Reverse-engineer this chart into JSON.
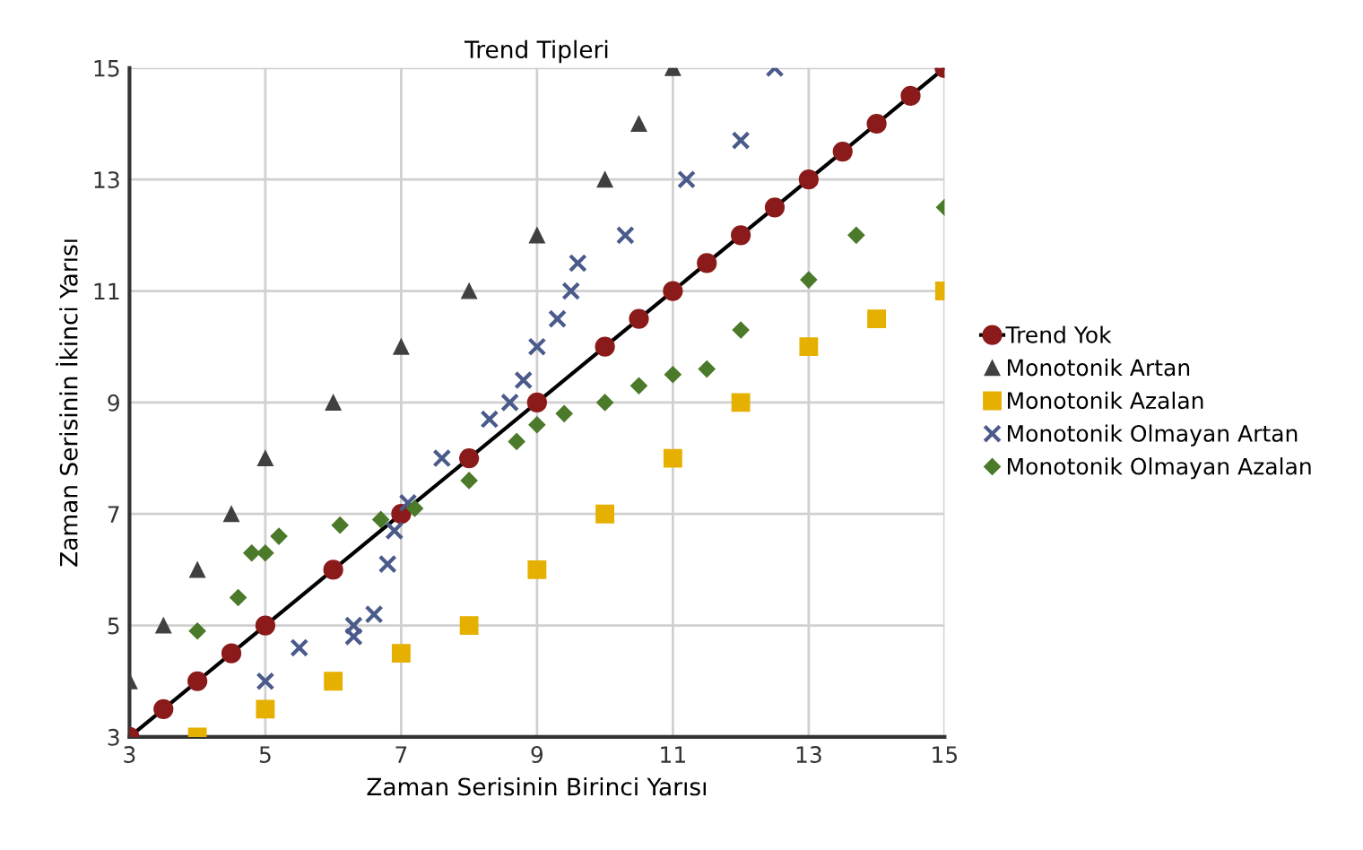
{
  "chart_data": {
    "type": "scatter",
    "title": "Trend Tipleri",
    "xlabel": "Zaman Serisinin Birinci Yarısı",
    "ylabel": "Zaman Serisinin İkinci Yarısı",
    "xlim": [
      3,
      15
    ],
    "ylim": [
      3,
      15
    ],
    "xticks": [
      3,
      5,
      7,
      9,
      11,
      13,
      15
    ],
    "yticks": [
      3,
      5,
      7,
      9,
      11,
      13,
      15
    ],
    "grid": true,
    "legend": "right",
    "series": [
      {
        "name": "Trend Yok",
        "type": "line",
        "marker": "circle",
        "line_style": "solid",
        "color": "#8b1a1a",
        "x": [
          3,
          3.5,
          4,
          4.5,
          5,
          6,
          7,
          8,
          9,
          10,
          10.5,
          11,
          11.5,
          12,
          12.5,
          13,
          13.5,
          14,
          14.5,
          15
        ],
        "values": [
          3,
          3.5,
          4,
          4.5,
          5,
          6,
          7,
          8,
          9,
          10,
          10.5,
          11,
          11.5,
          12,
          12.5,
          13,
          13.5,
          14,
          14.5,
          15
        ]
      },
      {
        "name": "Monotonik Artan",
        "marker": "triangle",
        "color": "#404040",
        "x": [
          3,
          3.5,
          4,
          4.5,
          5,
          6,
          7,
          8,
          9,
          10,
          10.5,
          11
        ],
        "values": [
          4,
          5,
          6,
          7,
          8,
          9,
          10,
          11,
          12,
          13,
          14,
          15
        ]
      },
      {
        "name": "Monotonik Azalan",
        "marker": "square",
        "color": "#e6b000",
        "x": [
          4,
          5,
          6,
          7,
          8,
          9,
          10,
          11,
          12,
          13,
          14,
          15
        ],
        "values": [
          3,
          3.5,
          4,
          4.5,
          5,
          6,
          7,
          8,
          9,
          10,
          10.5,
          11
        ]
      },
      {
        "name": "Monotonik Olmayan Artan",
        "marker": "cross",
        "color": "#4a5a8a",
        "x": [
          5,
          5.5,
          6.3,
          6.3,
          6.6,
          6.8,
          6.9,
          7.1,
          7.6,
          8.3,
          8.6,
          8.8,
          9,
          9.3,
          9.5,
          9.6,
          10.3,
          11.2,
          12,
          12.5
        ],
        "values": [
          4,
          4.6,
          5,
          4.8,
          5.2,
          6.1,
          6.7,
          7.2,
          8,
          8.7,
          9,
          9.4,
          10,
          10.5,
          11,
          11.5,
          12,
          13,
          13.7,
          15
        ]
      },
      {
        "name": "Monotonik Olmayan Azalan",
        "marker": "diamond",
        "color": "#4a7a2a",
        "x": [
          4,
          4.6,
          4.8,
          5,
          5.2,
          6.1,
          6.7,
          7.2,
          8,
          8.7,
          9,
          9.4,
          10,
          10.5,
          11,
          11.5,
          12,
          13,
          13.7,
          15
        ],
        "values": [
          4.9,
          5.5,
          6.3,
          6.3,
          6.6,
          6.8,
          6.9,
          7.1,
          7.6,
          8.3,
          8.6,
          8.8,
          9,
          9.3,
          9.5,
          9.6,
          10.3,
          11.2,
          12,
          12.5
        ]
      }
    ]
  }
}
